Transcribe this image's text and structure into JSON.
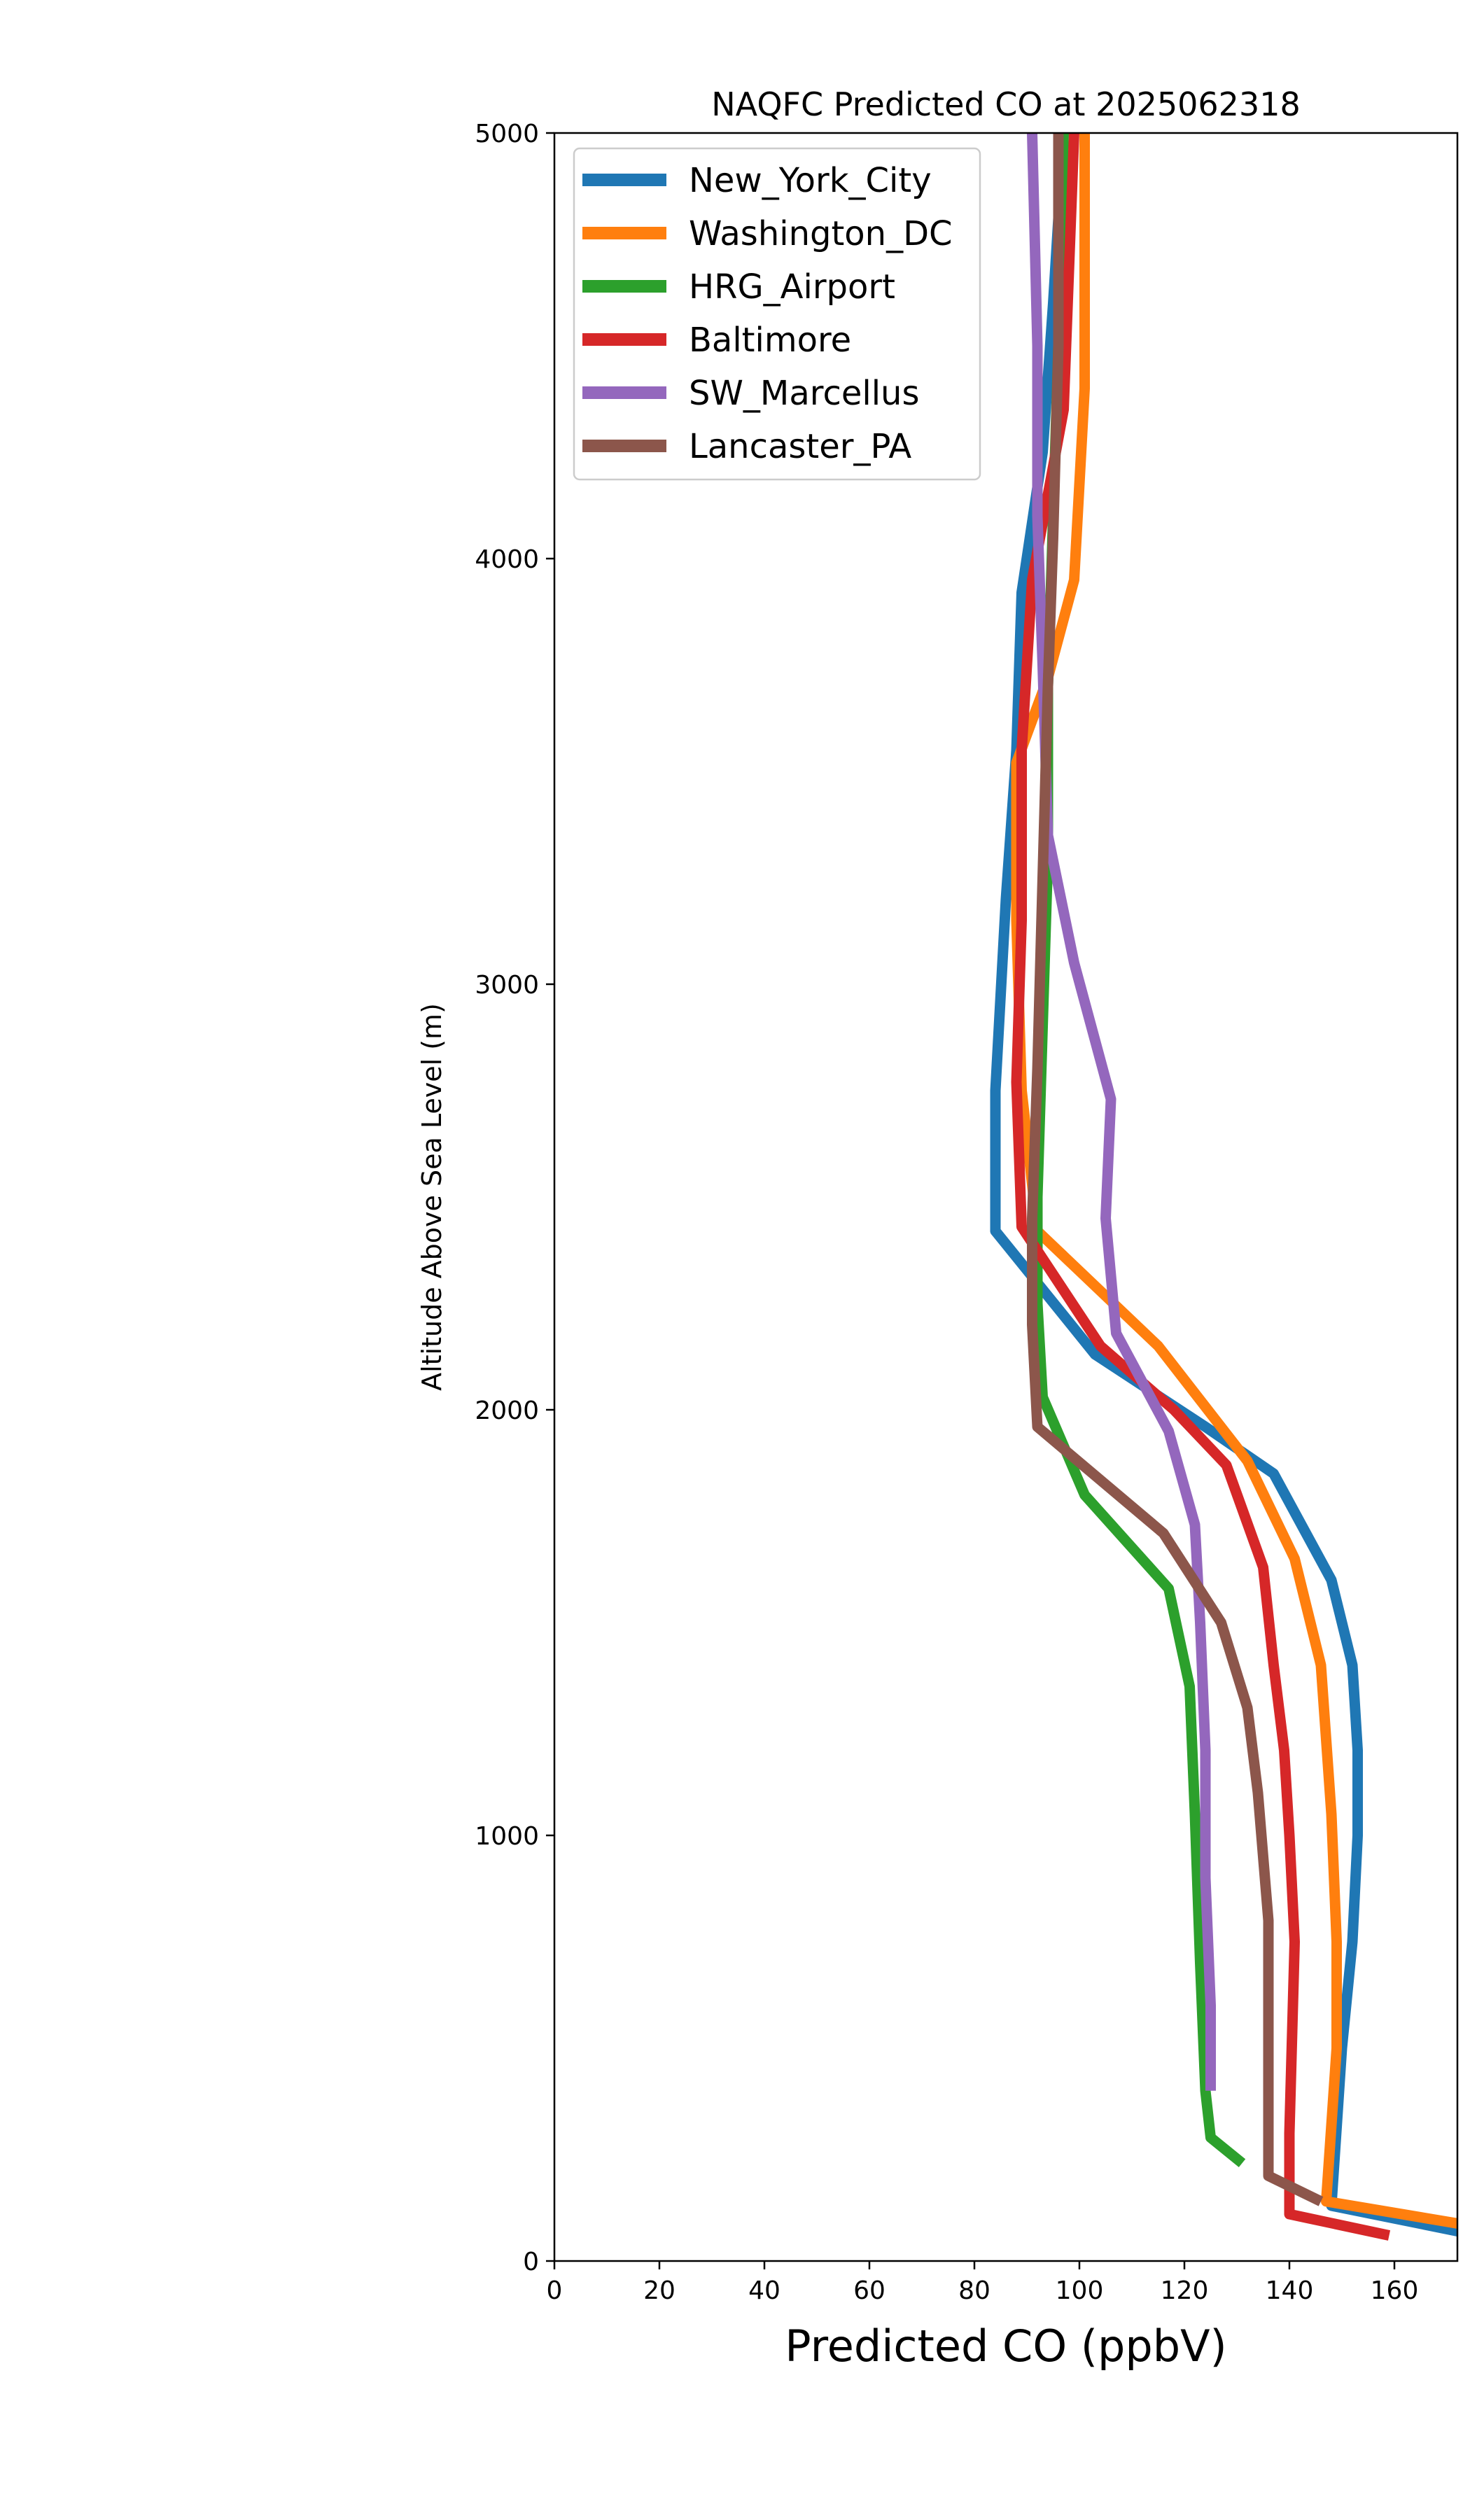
{
  "chart_data": {
    "type": "line",
    "title": "NAQFC Predicted CO at 2025062318",
    "xlabel": "Predicted CO (ppbV)",
    "ylabel": "Altitude Above Sea Level (m)",
    "xlim": [
      0,
      172
    ],
    "ylim": [
      0,
      5000
    ],
    "xticks": [
      0,
      20,
      40,
      60,
      80,
      100,
      120,
      140,
      160
    ],
    "yticks": [
      0,
      1000,
      2000,
      3000,
      4000,
      5000
    ],
    "grid": false,
    "legend_position": "top-left",
    "series": [
      {
        "name": "New_York_City",
        "color": "#1f77b4",
        "points": [
          [
            176,
            60
          ],
          [
            148,
            130
          ],
          [
            150,
            500
          ],
          [
            152,
            750
          ],
          [
            153,
            1000
          ],
          [
            153,
            1200
          ],
          [
            152,
            1400
          ],
          [
            148,
            1600
          ],
          [
            137,
            1850
          ],
          [
            124,
            1960
          ],
          [
            103,
            2130
          ],
          [
            84,
            2420
          ],
          [
            84,
            2750
          ],
          [
            86,
            3200
          ],
          [
            88,
            3550
          ],
          [
            89,
            3920
          ],
          [
            93,
            4250
          ],
          [
            95,
            4600
          ],
          [
            97,
            5000
          ]
        ]
      },
      {
        "name": "Washington_DC",
        "color": "#ff7f0e",
        "points": [
          [
            176,
            80
          ],
          [
            147,
            140
          ],
          [
            149,
            500
          ],
          [
            149,
            750
          ],
          [
            148,
            1050
          ],
          [
            146,
            1400
          ],
          [
            141,
            1650
          ],
          [
            132,
            1880
          ],
          [
            115,
            2150
          ],
          [
            92,
            2420
          ],
          [
            89,
            2750
          ],
          [
            88,
            3150
          ],
          [
            88,
            3520
          ],
          [
            94,
            3720
          ],
          [
            99,
            3950
          ],
          [
            101,
            4400
          ],
          [
            101,
            5000
          ]
        ]
      },
      {
        "name": "HRG_Airport",
        "color": "#2ca02c",
        "points": [
          [
            131,
            230
          ],
          [
            125,
            290
          ],
          [
            124,
            400
          ],
          [
            123,
            700
          ],
          [
            122,
            1050
          ],
          [
            121,
            1350
          ],
          [
            117,
            1580
          ],
          [
            101,
            1800
          ],
          [
            93,
            2030
          ],
          [
            92,
            2250
          ],
          [
            92,
            2500
          ],
          [
            93,
            2900
          ],
          [
            94,
            3300
          ],
          [
            94,
            3700
          ],
          [
            95,
            4100
          ],
          [
            96,
            4500
          ],
          [
            97,
            5000
          ]
        ]
      },
      {
        "name": "Baltimore",
        "color": "#d62728",
        "points": [
          [
            159,
            60
          ],
          [
            140,
            110
          ],
          [
            140,
            300
          ],
          [
            141,
            750
          ],
          [
            140,
            1000
          ],
          [
            139,
            1200
          ],
          [
            137,
            1400
          ],
          [
            135,
            1630
          ],
          [
            128,
            1870
          ],
          [
            118,
            2000
          ],
          [
            104,
            2150
          ],
          [
            89,
            2430
          ],
          [
            88,
            2770
          ],
          [
            89,
            3150
          ],
          [
            89,
            3550
          ],
          [
            91,
            3950
          ],
          [
            97,
            4350
          ],
          [
            99,
            5000
          ]
        ]
      },
      {
        "name": "SW_Marcellus",
        "color": "#9467bd",
        "points": [
          [
            125,
            400
          ],
          [
            125,
            600
          ],
          [
            124,
            900
          ],
          [
            124,
            1200
          ],
          [
            123,
            1500
          ],
          [
            122,
            1730
          ],
          [
            117,
            1950
          ],
          [
            107,
            2180
          ],
          [
            105,
            2450
          ],
          [
            106,
            2730
          ],
          [
            99,
            3050
          ],
          [
            94,
            3350
          ],
          [
            93,
            3750
          ],
          [
            92,
            4100
          ],
          [
            92,
            4500
          ],
          [
            91,
            5000
          ]
        ]
      },
      {
        "name": "Lancaster_PA",
        "color": "#8c564b",
        "points": [
          [
            146,
            140
          ],
          [
            136,
            200
          ],
          [
            136,
            500
          ],
          [
            136,
            800
          ],
          [
            134,
            1100
          ],
          [
            132,
            1300
          ],
          [
            127,
            1500
          ],
          [
            116,
            1710
          ],
          [
            92,
            1960
          ],
          [
            91,
            2200
          ],
          [
            91,
            2450
          ],
          [
            92,
            2800
          ],
          [
            93,
            3250
          ],
          [
            94,
            3700
          ],
          [
            95,
            4050
          ],
          [
            96,
            4500
          ],
          [
            96,
            5000
          ]
        ]
      }
    ]
  }
}
